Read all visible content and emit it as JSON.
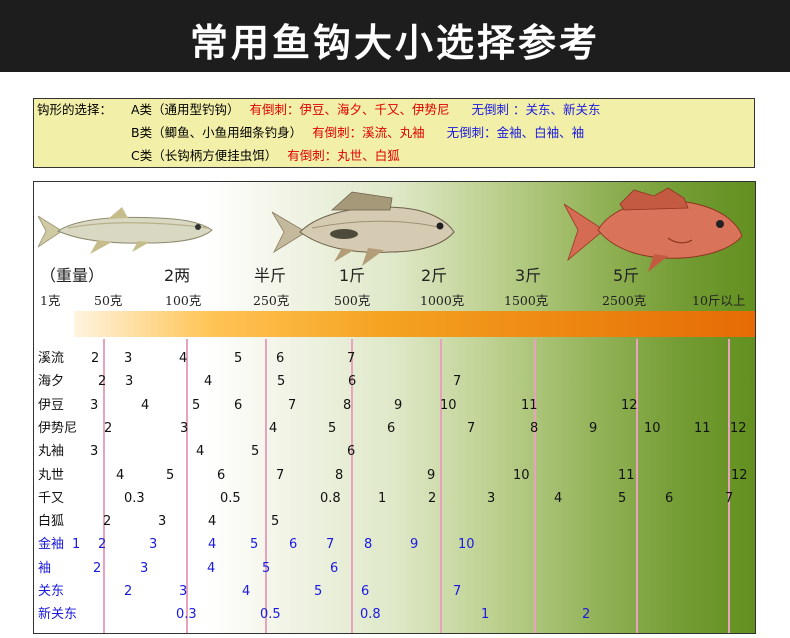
{
  "title": "常用鱼钩大小选择参考",
  "legend": {
    "lead": "钩形的选择：",
    "rows": [
      {
        "cls": "A类（通用型钓钩）",
        "barbed": "有倒刺：伊豆、海夕、千又、伊势尼",
        "barbless": "无倒刺 ：关东、新关东"
      },
      {
        "cls": "B类（鲫鱼、小鱼用细条钓身）",
        "barbed": "有倒刺：溪流、丸袖",
        "barbless": "无倒刺：金袖、白袖、袖"
      },
      {
        "cls": "C类（长钩柄方便挂虫饵）",
        "barbed": "有倒刺：丸世、白狐",
        "barbless": ""
      }
    ]
  },
  "colors": {
    "banner_bg": "#1d1d1d",
    "legend_bg": "#f2f0a8",
    "barbed": "#e00000",
    "barbless": "#1a1adf",
    "grid_line": "#e7a3bd",
    "chart_green": "#62901f"
  },
  "icons": [
    "fish-small",
    "fish-carp",
    "fish-red-snapper"
  ],
  "weights_cn": [
    "（重量）",
    "2两",
    "半斤",
    "1斤",
    "2斤",
    "3斤",
    "5斤"
  ],
  "weights_g": [
    "1克",
    "50克",
    "100克",
    "250克",
    "500克",
    "1000克",
    "1500克",
    "2500克",
    "10斤以上"
  ],
  "hook_table": [
    {
      "name": "溪流",
      "barbless": false,
      "values": [
        "2",
        "3",
        "4",
        "5",
        "6",
        "7"
      ]
    },
    {
      "name": "海夕",
      "barbless": false,
      "values": [
        "2",
        "3",
        "4",
        "5",
        "6",
        "7"
      ]
    },
    {
      "name": "伊豆",
      "barbless": false,
      "values": [
        "3",
        "4",
        "5",
        "6",
        "7",
        "8",
        "9",
        "10",
        "11",
        "12"
      ]
    },
    {
      "name": "伊势尼",
      "barbless": false,
      "values": [
        "2",
        "3",
        "4",
        "5",
        "6",
        "7",
        "8",
        "9",
        "10",
        "11",
        "12"
      ]
    },
    {
      "name": "丸袖",
      "barbless": false,
      "values": [
        "3",
        "4",
        "5",
        "6"
      ]
    },
    {
      "name": "丸世",
      "barbless": false,
      "values": [
        "4",
        "5",
        "6",
        "7",
        "8",
        "9",
        "10",
        "11",
        "12"
      ]
    },
    {
      "name": "千又",
      "barbless": false,
      "values": [
        "0.3",
        "0.5",
        "0.8",
        "1",
        "2",
        "3",
        "4",
        "5",
        "6",
        "7"
      ]
    },
    {
      "name": "白狐",
      "barbless": false,
      "values": [
        "2",
        "3",
        "4",
        "5"
      ]
    },
    {
      "name": "金袖",
      "barbless": true,
      "values": [
        "1",
        "2",
        "3",
        "4",
        "5",
        "6",
        "7",
        "8",
        "9",
        "10"
      ]
    },
    {
      "name": "袖",
      "barbless": true,
      "values": [
        "2",
        "3",
        "4",
        "5",
        "6"
      ]
    },
    {
      "name": "关东",
      "barbless": true,
      "values": [
        "2",
        "3",
        "4",
        "5",
        "6",
        "7"
      ]
    },
    {
      "name": "新关东",
      "barbless": true,
      "values": [
        "0.3",
        "0.5",
        "0.8",
        "1",
        "2"
      ]
    }
  ]
}
